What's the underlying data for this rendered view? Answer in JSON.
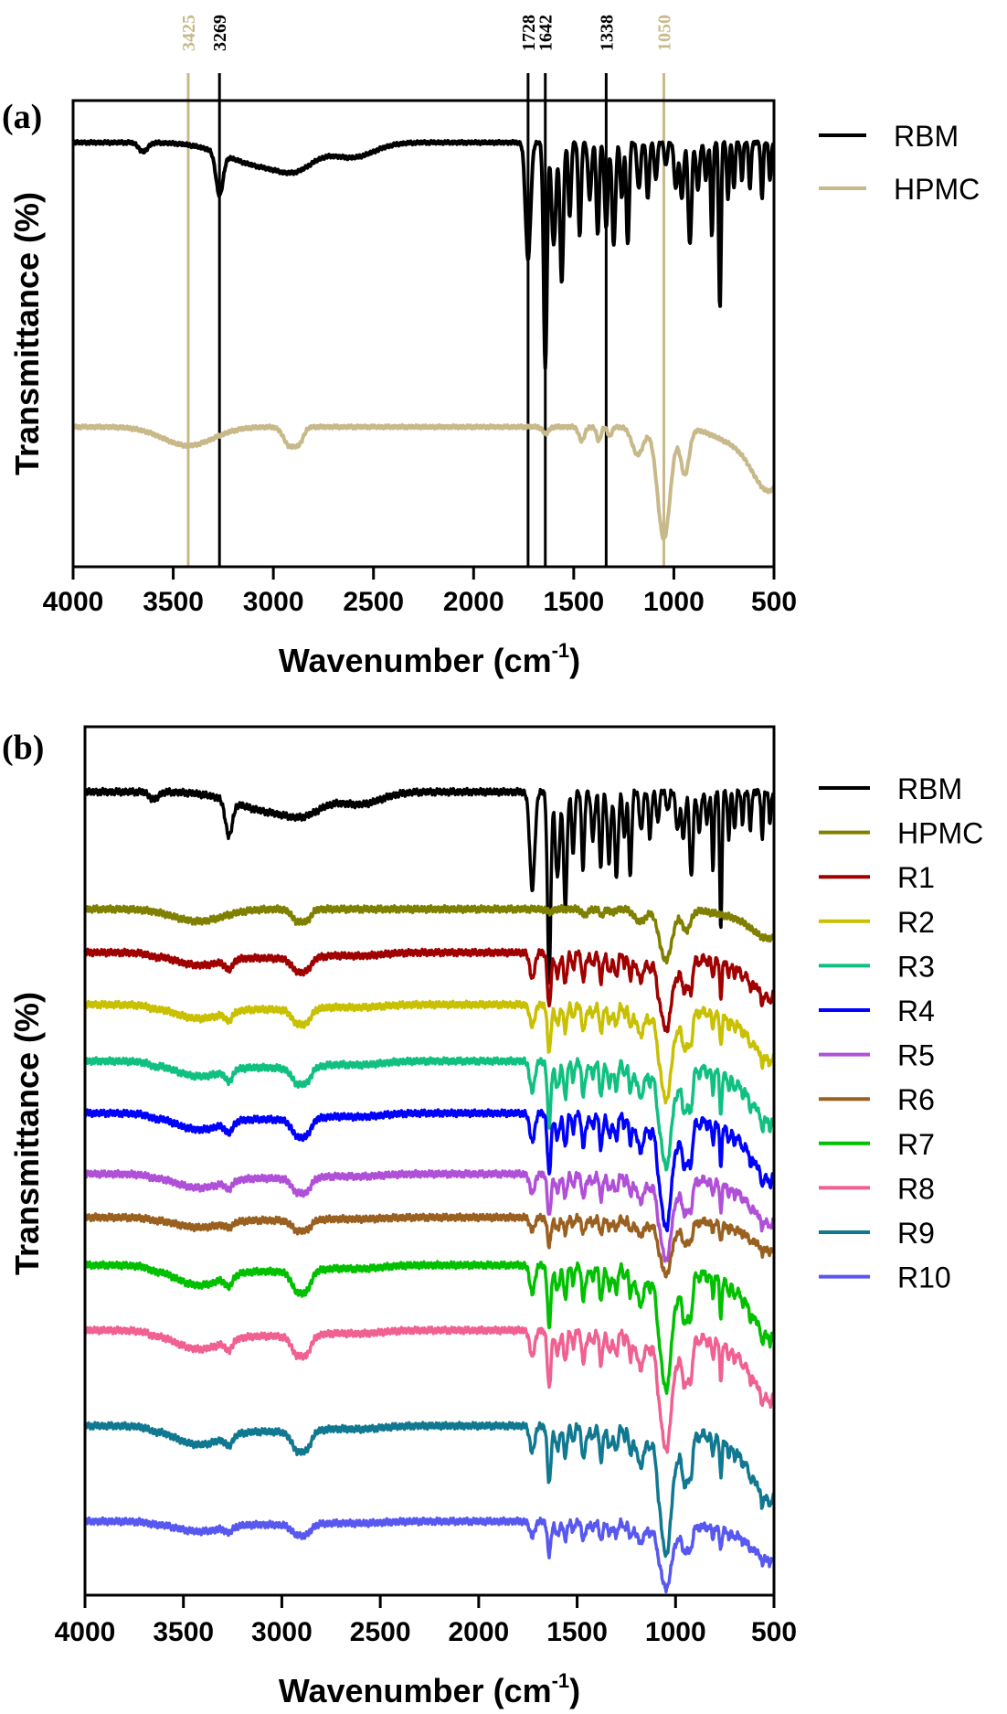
{
  "chart_data": [
    {
      "panel": "(a)",
      "type": "line",
      "title": "",
      "xlabel": "Wavenumber (cm-1)",
      "xlabel_main": "Wavenumber (cm",
      "xlabel_sup": "-1",
      "xlabel_close": ")",
      "ylabel": "Transmittance (%)",
      "xlim": [
        4000,
        500
      ],
      "x_reversed": true,
      "xticks": [
        4000,
        3500,
        3000,
        2500,
        2000,
        1500,
        1000,
        500
      ],
      "y_units": "arbitrary (offset), 0 = panel bottom, 100 = panel top",
      "legend_position": "right",
      "grid": false,
      "reference_lines": [
        {
          "wavenumber": 3425,
          "label": "3425",
          "color": "#c8b98a"
        },
        {
          "wavenumber": 3269,
          "label": "3269",
          "color": "#000000"
        },
        {
          "wavenumber": 1728,
          "label": "1728",
          "color": "#000000"
        },
        {
          "wavenumber": 1642,
          "label": "1642",
          "color": "#000000"
        },
        {
          "wavenumber": 1338,
          "label": "1338",
          "color": "#000000"
        },
        {
          "wavenumber": 1050,
          "label": "1050",
          "color": "#c8b98a"
        }
      ],
      "series": [
        {
          "name": "RBM",
          "color": "#000000",
          "baseline": 91,
          "bands": [
            [
              3650,
              2,
              30
            ],
            [
              3269,
              9,
              25
            ],
            [
              3050,
              5,
              250
            ],
            [
              2880,
              3,
              120
            ],
            [
              2600,
              3,
              150
            ],
            [
              1728,
              25,
              18
            ],
            [
              1642,
              48,
              12
            ],
            [
              1600,
              22,
              15
            ],
            [
              1560,
              30,
              12
            ],
            [
              1520,
              16,
              10
            ],
            [
              1470,
              20,
              10
            ],
            [
              1420,
              12,
              12
            ],
            [
              1380,
              20,
              10
            ],
            [
              1338,
              18,
              12
            ],
            [
              1300,
              22,
              12
            ],
            [
              1260,
              12,
              10
            ],
            [
              1230,
              22,
              10
            ],
            [
              1175,
              10,
              12
            ],
            [
              1130,
              12,
              10
            ],
            [
              1090,
              8,
              10
            ],
            [
              1040,
              5,
              10
            ],
            [
              990,
              10,
              12
            ],
            [
              960,
              12,
              12
            ],
            [
              920,
              22,
              12
            ],
            [
              880,
              10,
              12
            ],
            [
              840,
              8,
              10
            ],
            [
              810,
              20,
              8
            ],
            [
              770,
              36,
              8
            ],
            [
              730,
              12,
              8
            ],
            [
              700,
              10,
              8
            ],
            [
              660,
              8,
              8
            ],
            [
              620,
              10,
              8
            ],
            [
              560,
              12,
              8
            ],
            [
              520,
              8,
              8
            ]
          ]
        },
        {
          "name": "HPMC",
          "color": "#c8b98a",
          "baseline": 30,
          "bands": [
            [
              3425,
              4,
              180
            ],
            [
              2920,
              4,
              40
            ],
            [
              2870,
              3,
              30
            ],
            [
              1640,
              1.5,
              20
            ],
            [
              1460,
              3,
              20
            ],
            [
              1375,
              3,
              15
            ],
            [
              1320,
              2,
              15
            ],
            [
              1180,
              6,
              40
            ],
            [
              1050,
              24,
              45
            ],
            [
              945,
              10,
              30
            ],
            [
              700,
              3,
              150
            ],
            [
              520,
              13,
              120
            ]
          ]
        }
      ]
    },
    {
      "panel": "(b)",
      "type": "line",
      "title": "",
      "xlabel": "Wavenumber (cm-1)",
      "xlabel_main": "Wavenumber (cm",
      "xlabel_sup": "-1",
      "xlabel_close": ")",
      "ylabel": "Transmittance (%)",
      "xlim": [
        4000,
        500
      ],
      "x_reversed": true,
      "xticks": [
        4000,
        3500,
        3000,
        2500,
        2000,
        1500,
        1000,
        500
      ],
      "y_units": "arbitrary (offset), 0 = panel bottom, 100 = panel top",
      "legend_position": "right",
      "grid": false,
      "series": [
        {
          "name": "RBM",
          "color": "#000000",
          "baseline": 92.5,
          "rbm_scale": 0.45,
          "hpmc_scale": 0,
          "oh_depth": 0
        },
        {
          "name": "HPMC",
          "color": "#808000",
          "baseline": 79,
          "rbm_scale": 0,
          "hpmc_scale": 0.55,
          "oh_depth": 1.0
        },
        {
          "name": "R1",
          "color": "#a00000",
          "baseline": 74,
          "rbm_scale": 0.12,
          "hpmc_scale": 0.8,
          "oh_depth": 1.0
        },
        {
          "name": "R2",
          "color": "#c8c000",
          "baseline": 68,
          "rbm_scale": 0.1,
          "hpmc_scale": 1.0,
          "oh_depth": 1.1
        },
        {
          "name": "R3",
          "color": "#10c080",
          "baseline": 61.5,
          "rbm_scale": 0.14,
          "hpmc_scale": 1.1,
          "oh_depth": 1.2
        },
        {
          "name": "R4",
          "color": "#0000ff",
          "baseline": 55.5,
          "rbm_scale": 0.13,
          "hpmc_scale": 1.2,
          "oh_depth": 1.3
        },
        {
          "name": "R5",
          "color": "#b050d8",
          "baseline": 48.5,
          "rbm_scale": 0.09,
          "hpmc_scale": 0.9,
          "oh_depth": 1.1
        },
        {
          "name": "R6",
          "color": "#9a6020",
          "baseline": 43.5,
          "rbm_scale": 0.06,
          "hpmc_scale": 0.6,
          "oh_depth": 0.8
        },
        {
          "name": "R7",
          "color": "#00c000",
          "baseline": 38,
          "rbm_scale": 0.13,
          "hpmc_scale": 1.3,
          "oh_depth": 1.6
        },
        {
          "name": "R8",
          "color": "#f06090",
          "baseline": 30.5,
          "rbm_scale": 0.12,
          "hpmc_scale": 1.25,
          "oh_depth": 1.5
        },
        {
          "name": "R9",
          "color": "#107890",
          "baseline": 19.5,
          "rbm_scale": 0.12,
          "hpmc_scale": 1.35,
          "oh_depth": 1.5
        },
        {
          "name": "R10",
          "color": "#5858f0",
          "baseline": 8.5,
          "rbm_scale": 0.07,
          "hpmc_scale": 0.7,
          "oh_depth": 0.8
        }
      ]
    }
  ]
}
